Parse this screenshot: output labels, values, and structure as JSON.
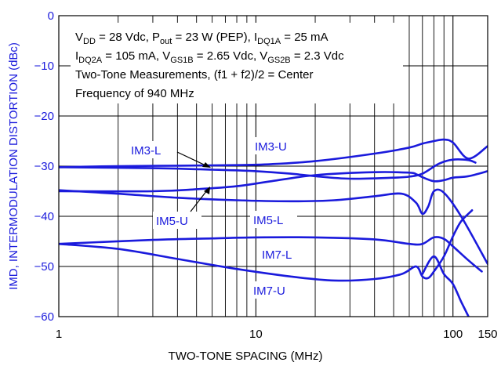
{
  "chart_data": {
    "type": "line",
    "xlabel": "TWO-TONE SPACING (MHz)",
    "ylabel": "IMD, INTERMODULATION DISTORTION (dBc)",
    "xscale": "log",
    "xlim": [
      1,
      150
    ],
    "ylim": [
      -60,
      0
    ],
    "x_ticks": [
      1,
      10,
      100,
      150
    ],
    "x_tick_labels": [
      "1",
      "10",
      "100",
      "150"
    ],
    "y_ticks": [
      0,
      -10,
      -20,
      -30,
      -40,
      -50,
      -60
    ],
    "y_tick_labels": [
      "0",
      "−10",
      "−20",
      "−30",
      "−40",
      "−50",
      "−60"
    ],
    "grid": true,
    "colors": {
      "series": "#1a1adc",
      "grid": "#000000",
      "ylabel": "#1a1adc"
    },
    "annotations": {
      "line1": [
        "V",
        "DD",
        " = 28 Vdc, P",
        "out",
        " = 23 W (PEP), I",
        "DQ1A",
        " = 25 mA"
      ],
      "line2": [
        "I",
        "DQ2A",
        " = 105 mA, V",
        "GS1B",
        " = 2.65 Vdc, V",
        "GS2B",
        " = 2.3 Vdc"
      ],
      "line3": "Two-Tone Measurements, (f1 + f2)/2 = Center",
      "line4": "Frequency of 940 MHz"
    },
    "series": [
      {
        "name": "IM3-U",
        "x": [
          1,
          2,
          4,
          8,
          12,
          20,
          40,
          60,
          70,
          80,
          90,
          100,
          120,
          150
        ],
        "y": [
          -30.2,
          -30,
          -29.9,
          -29.8,
          -29.6,
          -29,
          -27.5,
          -26.3,
          -25.5,
          -25,
          -24.7,
          -25.3,
          -28.5,
          -26
        ]
      },
      {
        "name": "IM3-L",
        "x": [
          1,
          3,
          6,
          10,
          15,
          20,
          30,
          50,
          60,
          70,
          85,
          100,
          120,
          130
        ],
        "y": [
          -30.2,
          -30.4,
          -30.7,
          -31,
          -31.5,
          -32,
          -32.5,
          -32.3,
          -32.1,
          -31.5,
          -29.5,
          -28.7,
          -28.8,
          -29.3
        ]
      },
      {
        "name": "IM5-U",
        "x": [
          1,
          3,
          5,
          8,
          12,
          20,
          40,
          60,
          65,
          70,
          80,
          90,
          100,
          120,
          150
        ],
        "y": [
          -35,
          -35,
          -34.6,
          -34,
          -33,
          -31.8,
          -31.2,
          -31.3,
          -31.6,
          -32.2,
          -33,
          -32.8,
          -32.3,
          -32,
          -31
        ]
      },
      {
        "name": "IM5-L",
        "x": [
          1,
          2,
          4,
          8,
          15,
          25,
          40,
          55,
          65,
          70,
          75,
          80,
          90,
          110,
          150
        ],
        "y": [
          -34.8,
          -35.5,
          -36.3,
          -36.8,
          -37,
          -36.8,
          -36,
          -35.5,
          -37.3,
          -39.5,
          -38,
          -35,
          -35.3,
          -40,
          -49.5
        ]
      },
      {
        "name": "IM7-L",
        "x": [
          1,
          3,
          6,
          10,
          20,
          40,
          60,
          70,
          80,
          90,
          100,
          120,
          140
        ],
        "y": [
          -45.5,
          -44.7,
          -44.4,
          -44.2,
          -44.2,
          -44.6,
          -45.5,
          -45.5,
          -44.2,
          -44.5,
          -46,
          -48.8,
          -51
        ]
      },
      {
        "name": "IM7-U",
        "x": [
          1,
          2,
          4,
          8,
          15,
          25,
          40,
          55,
          65,
          70,
          75,
          80,
          90,
          100,
          110,
          125
        ],
        "y": [
          -45.5,
          -46.5,
          -48.5,
          -50.5,
          -52,
          -52.8,
          -52.5,
          -51.5,
          -50,
          -52,
          -52.3,
          -51,
          -48,
          -44,
          -41,
          -38.8
        ]
      },
      {
        "name": "",
        "x": [
          70,
          80,
          90,
          100,
          110,
          120
        ],
        "y": [
          -51.5,
          -48,
          -51.5,
          -53.5,
          -57,
          -60
        ]
      }
    ],
    "labels": {
      "im3_l": "IM3-L",
      "im3_u": "IM3-U",
      "im5_u": "IM5-U",
      "im5_l": "IM5-L",
      "im7_l": "IM7-L",
      "im7_u": "IM7-U"
    }
  }
}
